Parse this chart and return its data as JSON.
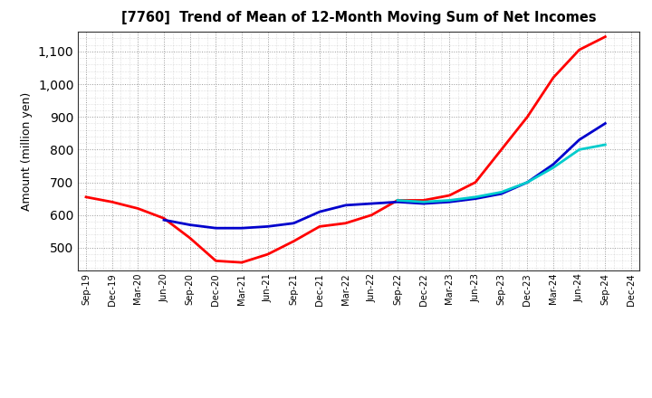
{
  "title": "[7760]  Trend of Mean of 12-Month Moving Sum of Net Incomes",
  "ylabel": "Amount (million yen)",
  "background_color": "#ffffff",
  "plot_bg_color": "#ffffff",
  "grid_color": "#999999",
  "ylim": [
    430,
    1160
  ],
  "yticks": [
    500,
    600,
    700,
    800,
    900,
    1000,
    1100
  ],
  "x_labels": [
    "Sep-19",
    "Dec-19",
    "Mar-20",
    "Jun-20",
    "Sep-20",
    "Dec-20",
    "Mar-21",
    "Jun-21",
    "Sep-21",
    "Dec-21",
    "Mar-22",
    "Jun-22",
    "Sep-22",
    "Dec-22",
    "Mar-23",
    "Jun-23",
    "Sep-23",
    "Dec-23",
    "Mar-24",
    "Jun-24",
    "Sep-24",
    "Dec-24"
  ],
  "series": {
    "3 Years": {
      "color": "#ff0000",
      "data_x": [
        "Sep-19",
        "Dec-19",
        "Mar-20",
        "Jun-20",
        "Sep-20",
        "Dec-20",
        "Mar-21",
        "Jun-21",
        "Sep-21",
        "Dec-21",
        "Mar-22",
        "Jun-22",
        "Sep-22",
        "Dec-22",
        "Mar-23",
        "Jun-23",
        "Sep-23",
        "Dec-23",
        "Mar-24",
        "Jun-24",
        "Sep-24"
      ],
      "data_y": [
        655,
        640,
        620,
        590,
        530,
        460,
        455,
        480,
        520,
        565,
        575,
        600,
        645,
        645,
        660,
        700,
        800,
        900,
        1020,
        1105,
        1145
      ]
    },
    "5 Years": {
      "color": "#0000cc",
      "data_x": [
        "Jun-20",
        "Sep-20",
        "Dec-20",
        "Mar-21",
        "Jun-21",
        "Sep-21",
        "Dec-21",
        "Mar-22",
        "Jun-22",
        "Sep-22",
        "Dec-22",
        "Mar-23",
        "Jun-23",
        "Sep-23",
        "Dec-23",
        "Mar-24",
        "Jun-24",
        "Sep-24"
      ],
      "data_y": [
        585,
        570,
        560,
        560,
        565,
        575,
        610,
        630,
        635,
        640,
        635,
        640,
        650,
        665,
        700,
        755,
        830,
        880
      ]
    },
    "7 Years": {
      "color": "#00cccc",
      "data_x": [
        "Sep-22",
        "Dec-22",
        "Mar-23",
        "Jun-23",
        "Sep-23",
        "Dec-23",
        "Mar-24",
        "Jun-24",
        "Sep-24"
      ],
      "data_y": [
        645,
        640,
        645,
        655,
        670,
        700,
        745,
        800,
        815
      ]
    },
    "10 Years": {
      "color": "#008000",
      "data_x": [],
      "data_y": []
    }
  }
}
